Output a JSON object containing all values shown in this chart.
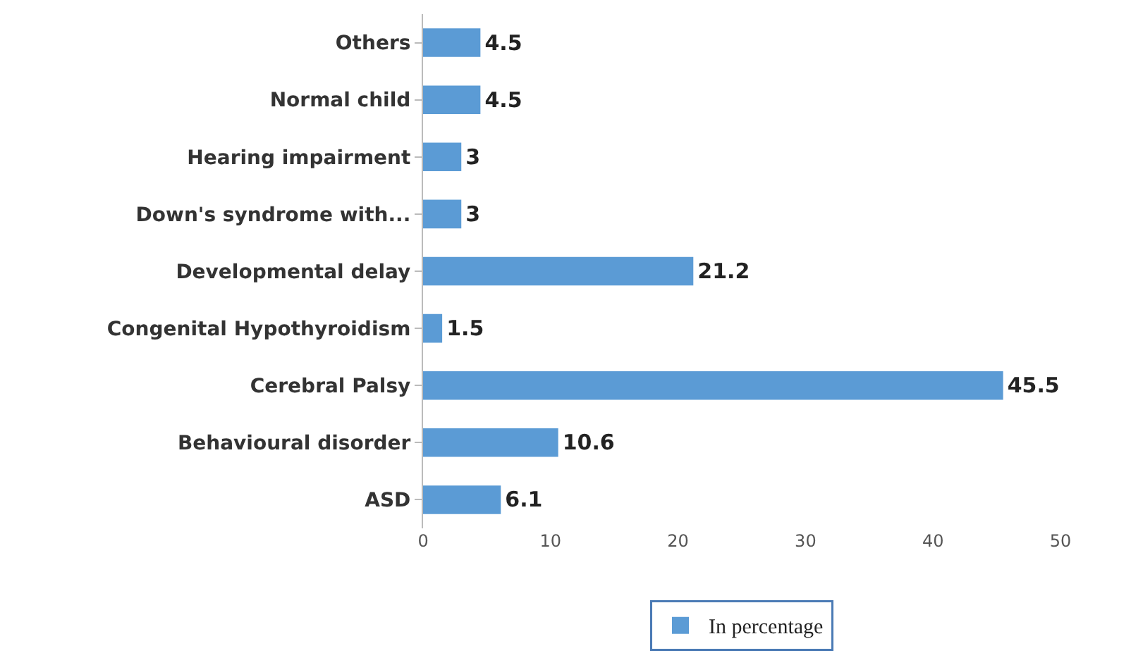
{
  "chart_data": {
    "type": "bar",
    "orientation": "horizontal",
    "categories": [
      "Others",
      "Normal child",
      "Hearing impairment",
      "Down's syndrome with...",
      "Developmental delay",
      "Congenital Hypothyroidism",
      "Cerebral Palsy",
      "Behavioural disorder",
      "ASD"
    ],
    "series": [
      {
        "name": "In percentage",
        "color": "#5b9bd5",
        "values": [
          4.5,
          4.5,
          3,
          3,
          21.2,
          1.5,
          45.5,
          10.6,
          6.1
        ]
      }
    ],
    "xlim": [
      0,
      50
    ],
    "xticks": [
      0,
      10,
      20,
      30,
      40,
      50
    ],
    "data_labels": true,
    "grid": false,
    "legend": "bottom"
  }
}
